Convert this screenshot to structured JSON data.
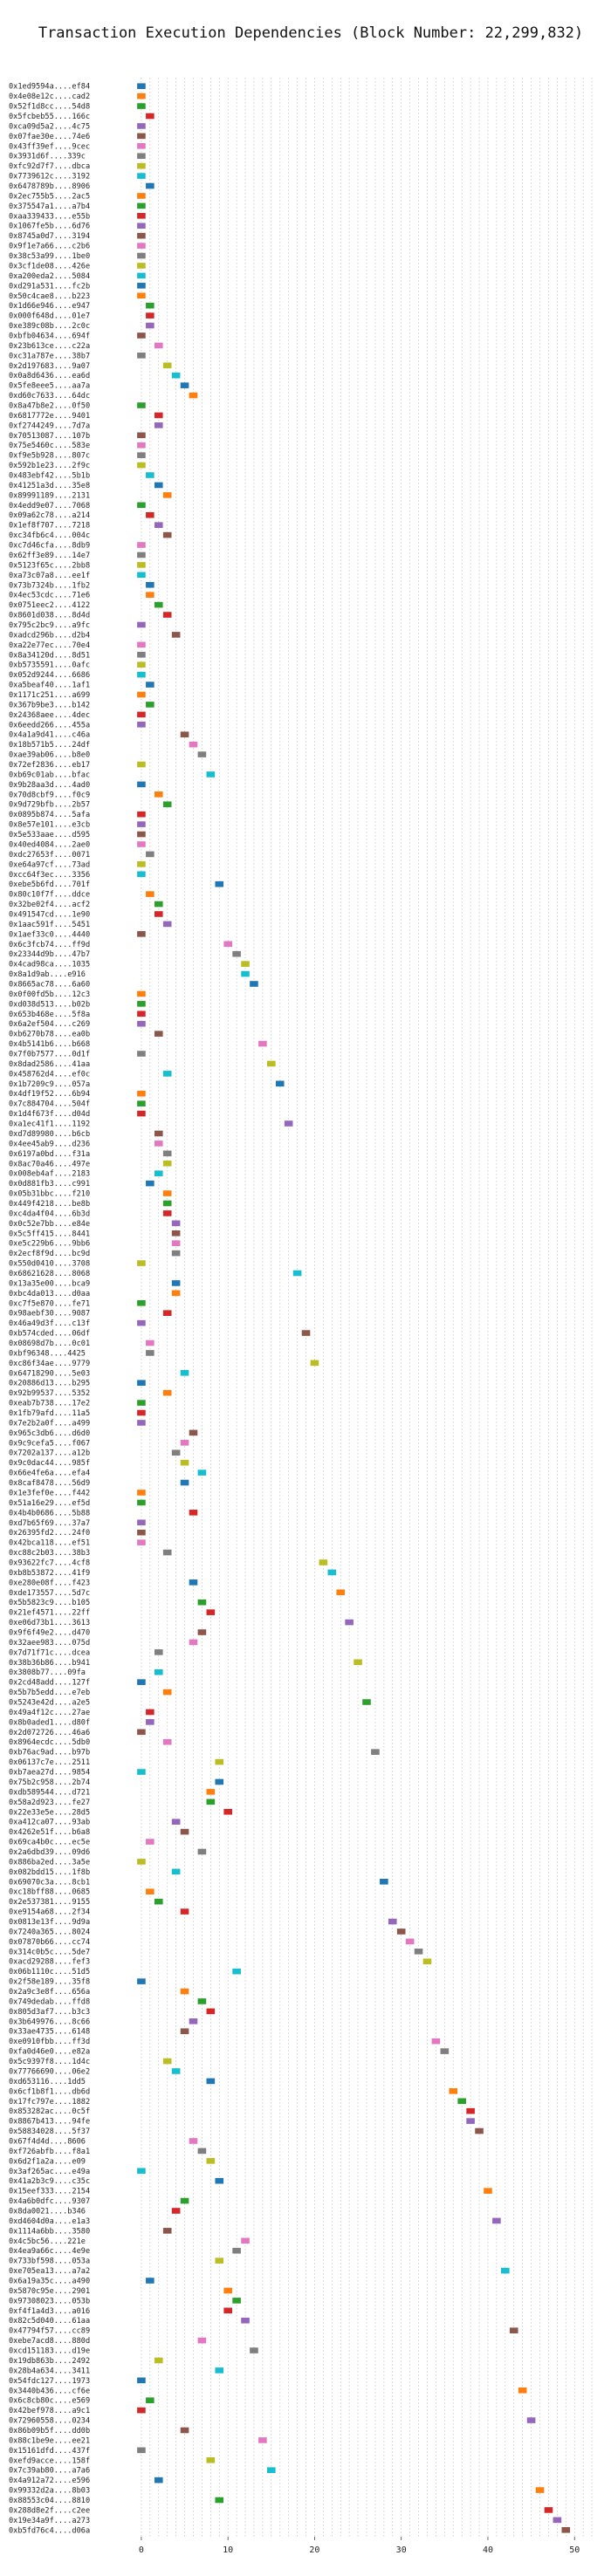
{
  "chart_data": {
    "type": "bar",
    "orientation": "horizontal",
    "title": "Transaction Execution Dependencies (Block Number: 22,299,832)",
    "xlabel": "",
    "ylabel": "",
    "xlim": [
      -1,
      53
    ],
    "xticks": [
      0,
      10,
      20,
      30,
      40,
      50
    ],
    "grid": "vertical dotted",
    "colors": [
      "#1f77b4",
      "#ff7f0e",
      "#2ca02c",
      "#d62728",
      "#9467bd",
      "#8c564b",
      "#e377c2",
      "#7f7f7f",
      "#bcbd22",
      "#17becf"
    ],
    "transactions": [
      {
        "tx": "0x1ed9594a....ef84",
        "start": 0
      },
      {
        "tx": "0x4e08e12c....cad2",
        "start": 0
      },
      {
        "tx": "0x52f1d8cc....54d8",
        "start": 0
      },
      {
        "tx": "0x5fcbeb55....166c",
        "start": 1
      },
      {
        "tx": "0xca09d5a2....4c75",
        "start": 0
      },
      {
        "tx": "0x07fae30e....74e6",
        "start": 0
      },
      {
        "tx": "0x43ff39ef....9cec",
        "start": 0
      },
      {
        "tx": "0x3931d6f....339c",
        "start": 0
      },
      {
        "tx": "0xfc92d7f7....dbca",
        "start": 0
      },
      {
        "tx": "0x7739612c....3192",
        "start": 0
      },
      {
        "tx": "0x6478789b....8906",
        "start": 1
      },
      {
        "tx": "0x2ec755b5....2ac5",
        "start": 0
      },
      {
        "tx": "0x375547a1....a7b4",
        "start": 0
      },
      {
        "tx": "0xaa339433....e55b",
        "start": 0
      },
      {
        "tx": "0x1067fe5b....6d76",
        "start": 0
      },
      {
        "tx": "0x8745a0d7....3194",
        "start": 0
      },
      {
        "tx": "0x9f1e7a66....c2b6",
        "start": 0
      },
      {
        "tx": "0x38c53a99....1be0",
        "start": 0
      },
      {
        "tx": "0x3cf1de08....426e",
        "start": 0
      },
      {
        "tx": "0xa200eda2....5084",
        "start": 0
      },
      {
        "tx": "0xd291a531....fc2b",
        "start": 0
      },
      {
        "tx": "0x50c4cae8....b223",
        "start": 0
      },
      {
        "tx": "0x1d66e946....e947",
        "start": 1
      },
      {
        "tx": "0x000f648d....01e7",
        "start": 1
      },
      {
        "tx": "0xe389c08b....2c0c",
        "start": 1
      },
      {
        "tx": "0xbfb04634....694f",
        "start": 0
      },
      {
        "tx": "0x23b613ce....c22a",
        "start": 2
      },
      {
        "tx": "0xc31a787e....38b7",
        "start": 0
      },
      {
        "tx": "0x2d197683....9a07",
        "start": 3
      },
      {
        "tx": "0x0a8d6436....ea6d",
        "start": 4
      },
      {
        "tx": "0x5fe8eee5....aa7a",
        "start": 5
      },
      {
        "tx": "0xd60c7633....64dc",
        "start": 6
      },
      {
        "tx": "0x8a47b8e2....0f50",
        "start": 0
      },
      {
        "tx": "0x6817772e....9401",
        "start": 2
      },
      {
        "tx": "0xf2744249....7d7a",
        "start": 2
      },
      {
        "tx": "0x70513087....107b",
        "start": 0
      },
      {
        "tx": "0x75e5460c....583e",
        "start": 0
      },
      {
        "tx": "0xf9e5b928....807c",
        "start": 0
      },
      {
        "tx": "0x592b1e23....2f9c",
        "start": 0
      },
      {
        "tx": "0x483ebf42....5b1b",
        "start": 1
      },
      {
        "tx": "0x41251a3d....35e8",
        "start": 2
      },
      {
        "tx": "0x89991189....2131",
        "start": 3
      },
      {
        "tx": "0x4edd9e07....7068",
        "start": 0
      },
      {
        "tx": "0x09a62c78....a214",
        "start": 1
      },
      {
        "tx": "0x1ef8f707....7218",
        "start": 2
      },
      {
        "tx": "0xc34fb6c4....004c",
        "start": 3
      },
      {
        "tx": "0xc7d46cfa....8db9",
        "start": 0
      },
      {
        "tx": "0x62ff3e89....14e7",
        "start": 0
      },
      {
        "tx": "0x5123f65c....2bb8",
        "start": 0
      },
      {
        "tx": "0xa73c07a8....ee1f",
        "start": 0
      },
      {
        "tx": "0x73b7324b....1fb2",
        "start": 1
      },
      {
        "tx": "0x4ec53cdc....71e6",
        "start": 1
      },
      {
        "tx": "0x0751eec2....4122",
        "start": 2
      },
      {
        "tx": "0x8601d038....8d4d",
        "start": 3
      },
      {
        "tx": "0x795c2bc9....a9fc",
        "start": 0
      },
      {
        "tx": "0xadcd296b....d2b4",
        "start": 4
      },
      {
        "tx": "0xa22e77ec....70e4",
        "start": 0
      },
      {
        "tx": "0x8a34120d....8d51",
        "start": 0
      },
      {
        "tx": "0xb5735591....0afc",
        "start": 0
      },
      {
        "tx": "0x052d9244....6686",
        "start": 0
      },
      {
        "tx": "0xa5beaf40....1af1",
        "start": 1
      },
      {
        "tx": "0x1171c251....a699",
        "start": 0
      },
      {
        "tx": "0x367b9be3....b142",
        "start": 1
      },
      {
        "tx": "0x24368aee....4dec",
        "start": 0
      },
      {
        "tx": "0x6eedd266....455a",
        "start": 0
      },
      {
        "tx": "0x4a1a9d41....c46a",
        "start": 5
      },
      {
        "tx": "0x18b571b5....24df",
        "start": 6
      },
      {
        "tx": "0xae39ab06....b8e0",
        "start": 7
      },
      {
        "tx": "0x72ef2836....eb17",
        "start": 0
      },
      {
        "tx": "0xb69c01ab....bfac",
        "start": 8
      },
      {
        "tx": "0x9b28aa3d....4ad0",
        "start": 0
      },
      {
        "tx": "0x70d8cbf9....f0c9",
        "start": 2
      },
      {
        "tx": "0x9d729bfb....2b57",
        "start": 3
      },
      {
        "tx": "0x0895b874....5afa",
        "start": 0
      },
      {
        "tx": "0x8e57e101....e3cb",
        "start": 0
      },
      {
        "tx": "0x5e533aae....d595",
        "start": 0
      },
      {
        "tx": "0x40ed4084....2ae0",
        "start": 0
      },
      {
        "tx": "0xdc27653f....0071",
        "start": 1
      },
      {
        "tx": "0xe64a97cf....73ad",
        "start": 0
      },
      {
        "tx": "0xcc64f3ec....3356",
        "start": 0
      },
      {
        "tx": "0xebe5b6fd....701f",
        "start": 9
      },
      {
        "tx": "0x80c10f7f....ddce",
        "start": 1
      },
      {
        "tx": "0x32be02f4....acf2",
        "start": 2
      },
      {
        "tx": "0x491547cd....1e90",
        "start": 2
      },
      {
        "tx": "0x1aac591f....5451",
        "start": 3
      },
      {
        "tx": "0x1aef33c0....4440",
        "start": 0
      },
      {
        "tx": "0x6c3fcb74....ff9d",
        "start": 10
      },
      {
        "tx": "0x23344d9b....47b7",
        "start": 11
      },
      {
        "tx": "0x4cad98ca....1035",
        "start": 12
      },
      {
        "tx": "0x8a1d9ab....e916",
        "start": 12
      },
      {
        "tx": "0x8665ac78....6a60",
        "start": 13
      },
      {
        "tx": "0x0f00fd5b....12c3",
        "start": 0
      },
      {
        "tx": "0xd038d513....b02b",
        "start": 0
      },
      {
        "tx": "0x653b468e....5f8a",
        "start": 0
      },
      {
        "tx": "0x6a2ef504....c269",
        "start": 0
      },
      {
        "tx": "0xb6270b78....ea0b",
        "start": 2
      },
      {
        "tx": "0x4b5141b6....b668",
        "start": 14
      },
      {
        "tx": "0x7f0b7577....0d1f",
        "start": 0
      },
      {
        "tx": "0x8dad2586....41aa",
        "start": 15
      },
      {
        "tx": "0x458762d4....ef0c",
        "start": 3
      },
      {
        "tx": "0x1b7209c9....057a",
        "start": 16
      },
      {
        "tx": "0x4df19f52....6b94",
        "start": 0
      },
      {
        "tx": "0x7c884704....504f",
        "start": 0
      },
      {
        "tx": "0x1d4f673f....d04d",
        "start": 0
      },
      {
        "tx": "0xa1ec41f1....1192",
        "start": 17
      },
      {
        "tx": "0xd7d89980....b6cb",
        "start": 2
      },
      {
        "tx": "0x4ee45ab9....d236",
        "start": 2
      },
      {
        "tx": "0x6197a0bd....f31a",
        "start": 3
      },
      {
        "tx": "0x8ac70a46....497e",
        "start": 3
      },
      {
        "tx": "0x008eb4af....2183",
        "start": 2
      },
      {
        "tx": "0x0d881fb3....c991",
        "start": 1
      },
      {
        "tx": "0x05b31bbc....f210",
        "start": 3
      },
      {
        "tx": "0x449f4218....be8b",
        "start": 3
      },
      {
        "tx": "0xc4da4f04....6b3d",
        "start": 3
      },
      {
        "tx": "0x0c52e7bb....e84e",
        "start": 4
      },
      {
        "tx": "0x5c5ff415....8441",
        "start": 4
      },
      {
        "tx": "0xe5c229b6....9bb6",
        "start": 4
      },
      {
        "tx": "0x2ecf8f9d....bc9d",
        "start": 4
      },
      {
        "tx": "0x550d0410....3708",
        "start": 0
      },
      {
        "tx": "0x68621628....8068",
        "start": 18
      },
      {
        "tx": "0x13a35e00....bca9",
        "start": 4
      },
      {
        "tx": "0xbc4da013....d0aa",
        "start": 4
      },
      {
        "tx": "0xc7f5e870....fe71",
        "start": 0
      },
      {
        "tx": "0x98aebf30....9087",
        "start": 3
      },
      {
        "tx": "0x46a49d3f....c13f",
        "start": 0
      },
      {
        "tx": "0xb574cded....06df",
        "start": 19
      },
      {
        "tx": "0x08698d7b....0c01",
        "start": 1
      },
      {
        "tx": "0xbf96348....4425",
        "start": 1
      },
      {
        "tx": "0xc86f34ae....9779",
        "start": 20
      },
      {
        "tx": "0x64718290....5e03",
        "start": 5
      },
      {
        "tx": "0x20886d13....b295",
        "start": 0
      },
      {
        "tx": "0x92b99537....5352",
        "start": 3
      },
      {
        "tx": "0xeab7b738....17e2",
        "start": 0
      },
      {
        "tx": "0x1fb79afd....11a5",
        "start": 0
      },
      {
        "tx": "0x7e2b2a0f....a499",
        "start": 0
      },
      {
        "tx": "0x965c3db6....d6d0",
        "start": 6
      },
      {
        "tx": "0x9c9cefa5....f067",
        "start": 5
      },
      {
        "tx": "0x7202a137....a12b",
        "start": 4
      },
      {
        "tx": "0x9c0dac44....985f",
        "start": 5
      },
      {
        "tx": "0x66e4fe6a....efa4",
        "start": 7
      },
      {
        "tx": "0x8caf8478....56d9",
        "start": 5
      },
      {
        "tx": "0x1e3fef0e....f442",
        "start": 0
      },
      {
        "tx": "0x51a16e29....ef5d",
        "start": 0
      },
      {
        "tx": "0x4b4b0686....5b88",
        "start": 6
      },
      {
        "tx": "0xd7b65f69....37a7",
        "start": 0
      },
      {
        "tx": "0x26395fd2....24f0",
        "start": 0
      },
      {
        "tx": "0x42bca118....ef51",
        "start": 0
      },
      {
        "tx": "0xc88c2b03....38b3",
        "start": 3
      },
      {
        "tx": "0x93622fc7....4cf8",
        "start": 21
      },
      {
        "tx": "0xb8b53872....41f9",
        "start": 22
      },
      {
        "tx": "0xe280e08f....f423",
        "start": 6
      },
      {
        "tx": "0xde173557....5d7c",
        "start": 23
      },
      {
        "tx": "0x5b5823c9....b105",
        "start": 7
      },
      {
        "tx": "0x21ef4571....22ff",
        "start": 8
      },
      {
        "tx": "0xe06d73b1....3613",
        "start": 24
      },
      {
        "tx": "0x9f6f49e2....d470",
        "start": 7
      },
      {
        "tx": "0x32aee983....075d",
        "start": 6
      },
      {
        "tx": "0x7d71f71c....dcea",
        "start": 2
      },
      {
        "tx": "0x38b36b86....b941",
        "start": 25
      },
      {
        "tx": "0x3808b77....09fa",
        "start": 2
      },
      {
        "tx": "0x2cd48add....127f",
        "start": 0
      },
      {
        "tx": "0x5b7b5edd....e7eb",
        "start": 3
      },
      {
        "tx": "0x5243e42d....a2e5",
        "start": 26
      },
      {
        "tx": "0x49a4f12c....27ae",
        "start": 1
      },
      {
        "tx": "0x8b0aded1....d80f",
        "start": 1
      },
      {
        "tx": "0x2d072726....46a6",
        "start": 0
      },
      {
        "tx": "0x8964ecdc....5db0",
        "start": 3
      },
      {
        "tx": "0xb76ac9ad....b97b",
        "start": 27
      },
      {
        "tx": "0x06137c7e....2511",
        "start": 9
      },
      {
        "tx": "0xb7aea27d....9854",
        "start": 0
      },
      {
        "tx": "0x75b2c958....2b74",
        "start": 9
      },
      {
        "tx": "0xdb589544....d721",
        "start": 8
      },
      {
        "tx": "0x58a2d923....fe27",
        "start": 8
      },
      {
        "tx": "0x22e33e5e....28d5",
        "start": 10
      },
      {
        "tx": "0xa412ca07....93ab",
        "start": 4
      },
      {
        "tx": "0x4262e51f....b6a8",
        "start": 5
      },
      {
        "tx": "0x69ca4b0c....ec5e",
        "start": 1
      },
      {
        "tx": "0x2a6dbd39....09d6",
        "start": 7
      },
      {
        "tx": "0x886ba2ed....3a5e",
        "start": 0
      },
      {
        "tx": "0x082bdd15....1f8b",
        "start": 4
      },
      {
        "tx": "0x69070c3a....8cb1",
        "start": 28
      },
      {
        "tx": "0xc18bff88....0685",
        "start": 1
      },
      {
        "tx": "0x2e537381....9155",
        "start": 2
      },
      {
        "tx": "0xe9154a68....2f34",
        "start": 5
      },
      {
        "tx": "0x0813e13f....9d9a",
        "start": 29
      },
      {
        "tx": "0x7240a365....8024",
        "start": 30
      },
      {
        "tx": "0x07870b66....cc74",
        "start": 31
      },
      {
        "tx": "0x314c0b5c....5de7",
        "start": 32
      },
      {
        "tx": "0xacd29288....fef3",
        "start": 33
      },
      {
        "tx": "0x06b1110c....51d5",
        "start": 11
      },
      {
        "tx": "0x2f58e189....35f8",
        "start": 0
      },
      {
        "tx": "0x2a9c3e8f....656a",
        "start": 5
      },
      {
        "tx": "0x749dedab....ffd8",
        "start": 7
      },
      {
        "tx": "0x805d3af7....b3c3",
        "start": 8
      },
      {
        "tx": "0x3b649976....8c66",
        "start": 6
      },
      {
        "tx": "0x33ae4735....6148",
        "start": 5
      },
      {
        "tx": "0xe0910fbb....ff3d",
        "start": 34
      },
      {
        "tx": "0xfa0d46e0....e82a",
        "start": 35
      },
      {
        "tx": "0x5c9397f8....1d4c",
        "start": 3
      },
      {
        "tx": "0x77766690....06e2",
        "start": 4
      },
      {
        "tx": "0xd653116....1dd5",
        "start": 8
      },
      {
        "tx": "0x6cf1b8f1....db6d",
        "start": 36
      },
      {
        "tx": "0x17fc797e....1882",
        "start": 37
      },
      {
        "tx": "0x853282ac....0c5f",
        "start": 38
      },
      {
        "tx": "0x8867b413....94fe",
        "start": 38
      },
      {
        "tx": "0x58834028....5f37",
        "start": 39
      },
      {
        "tx": "0x67f4d4d....8606",
        "start": 6
      },
      {
        "tx": "0xf726abfb....f8a1",
        "start": 7
      },
      {
        "tx": "0x6d2f1a2a....e09",
        "start": 8
      },
      {
        "tx": "0x3af265ac....e49a",
        "start": 0
      },
      {
        "tx": "0x41a2b3c9....c35c",
        "start": 9
      },
      {
        "tx": "0x15eef333....2154",
        "start": 40
      },
      {
        "tx": "0x4a6b0dfc....9307",
        "start": 5
      },
      {
        "tx": "0x8da0021....b346",
        "start": 4
      },
      {
        "tx": "0xd4604d0a....e1a3",
        "start": 41
      },
      {
        "tx": "0x1114a6bb....3580",
        "start": 3
      },
      {
        "tx": "0x4c5bc56....221e",
        "start": 12
      },
      {
        "tx": "0x4ea9a66c....4e9e",
        "start": 11
      },
      {
        "tx": "0x733bf598....053a",
        "start": 9
      },
      {
        "tx": "0xe705ea13....a7a2",
        "start": 42
      },
      {
        "tx": "0x6a19a35c....a490",
        "start": 1
      },
      {
        "tx": "0x5870c95e....2901",
        "start": 10
      },
      {
        "tx": "0x97308023....053b",
        "start": 11
      },
      {
        "tx": "0xf4f1a4d3....a016",
        "start": 10
      },
      {
        "tx": "0x82c5d040....61aa",
        "start": 12
      },
      {
        "tx": "0x47794f57....cc89",
        "start": 43
      },
      {
        "tx": "0xebe7acd8....880d",
        "start": 7
      },
      {
        "tx": "0xcd151183....d19e",
        "start": 13
      },
      {
        "tx": "0x19db863b....2492",
        "start": 2
      },
      {
        "tx": "0x28b4a634....3411",
        "start": 9
      },
      {
        "tx": "0x54fdc127....1973",
        "start": 0
      },
      {
        "tx": "0x3440b436....cf6e",
        "start": 44
      },
      {
        "tx": "0x6c8cb80c....e569",
        "start": 1
      },
      {
        "tx": "0x42bef978....a9c1",
        "start": 0
      },
      {
        "tx": "0x72960558....0234",
        "start": 45
      },
      {
        "tx": "0x86b09b5f....dd0b",
        "start": 5
      },
      {
        "tx": "0x88c1be9e....ee21",
        "start": 14
      },
      {
        "tx": "0x15161dfd....437f",
        "start": 0
      },
      {
        "tx": "0xefd9acce....158f",
        "start": 8
      },
      {
        "tx": "0x7c39ab80....a7a6",
        "start": 15
      },
      {
        "tx": "0x4a912a72....e596",
        "start": 2
      },
      {
        "tx": "0x99332d2a....8b03",
        "start": 46
      },
      {
        "tx": "0x88553c04....8810",
        "start": 9
      },
      {
        "tx": "0x288d8e2f....c2ee",
        "start": 47
      },
      {
        "tx": "0x19e34a9f....a273",
        "start": 48
      },
      {
        "tx": "0xb5fd76c4....d06a",
        "start": 49
      }
    ]
  }
}
